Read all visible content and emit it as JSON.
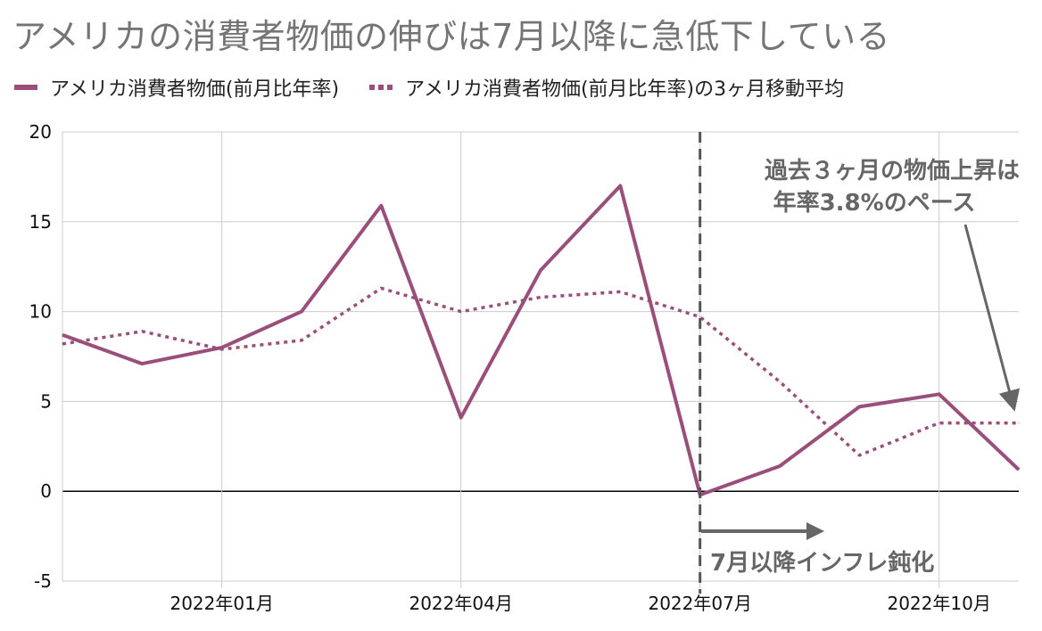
{
  "title": "アメリカの消費者物価の伸びは7月以降に急低下している",
  "legend": {
    "series1": "アメリカ消費者物価(前月比年率)",
    "series2": "アメリカ消費者物価(前月比年率)の3ヶ月移動平均"
  },
  "annotations": {
    "top_line1": "過去３ヶ月の物価上昇は",
    "top_line2": "年率3.8%のペース",
    "bottom": "7月以降インフレ鈍化"
  },
  "colors": {
    "series": "#9a4f7a",
    "annotation": "#666666",
    "grid": "#cccccc"
  },
  "chart_data": {
    "type": "line",
    "title": "アメリカの消費者物価の伸びは7月以降に急低下している",
    "x": [
      "2021-11",
      "2021-12",
      "2022-01",
      "2022-02",
      "2022-03",
      "2022-04",
      "2022-05",
      "2022-06",
      "2022-07",
      "2022-08",
      "2022-09",
      "2022-10",
      "2022-11"
    ],
    "x_tick_labels": [
      "2022年01月",
      "2022年04月",
      "2022年07月",
      "2022年10月"
    ],
    "y_tick_labels": [
      "-5",
      "0",
      "5",
      "10",
      "15",
      "20"
    ],
    "ylim": [
      -5,
      20
    ],
    "grid": true,
    "legend_position": "top-left",
    "series": [
      {
        "name": "アメリカ消費者物価(前月比年率)",
        "values": [
          8.7,
          7.1,
          8.0,
          10.0,
          15.9,
          4.1,
          12.3,
          17.0,
          -0.2,
          1.4,
          4.7,
          5.4,
          1.2
        ]
      },
      {
        "name": "アメリカ消費者物価(前月比年率)の3ヶ月移動平均",
        "values": [
          8.2,
          8.9,
          7.9,
          8.4,
          11.3,
          10.0,
          10.8,
          11.1,
          9.7,
          6.1,
          2.0,
          3.8,
          3.8
        ]
      }
    ],
    "vertical_line_at": "2022-07"
  }
}
